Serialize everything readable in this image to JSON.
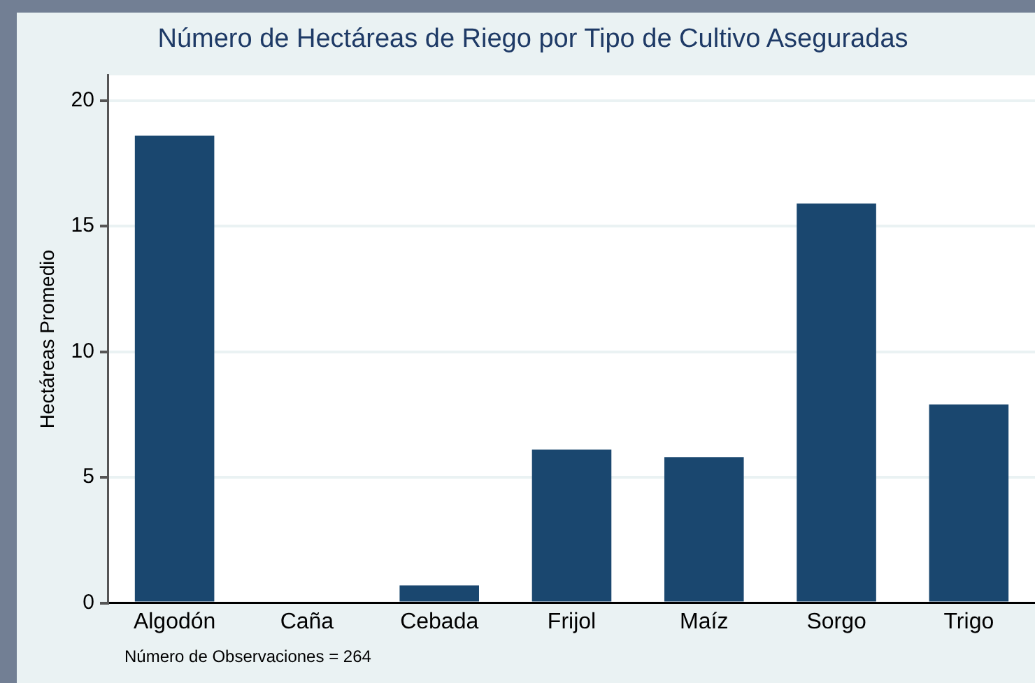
{
  "chart_data": {
    "type": "bar",
    "title": "Número de Hectáreas de Riego por Tipo de Cultivo Aseguradas",
    "ylabel": "Hectáreas Promedio",
    "categories": [
      "Algodón",
      "Caña",
      "Cebada",
      "Frijol",
      "Maíz",
      "Sorgo",
      "Trigo"
    ],
    "values": [
      18.6,
      0,
      0.7,
      6.1,
      5.8,
      15.9,
      7.9
    ],
    "color": "#1a476f",
    "ylim": [
      0,
      21
    ],
    "yticks": [
      0,
      5,
      10,
      15,
      20
    ],
    "grid": "y",
    "legend": false,
    "annotations": [
      "Número de Observaciones = 264"
    ]
  }
}
